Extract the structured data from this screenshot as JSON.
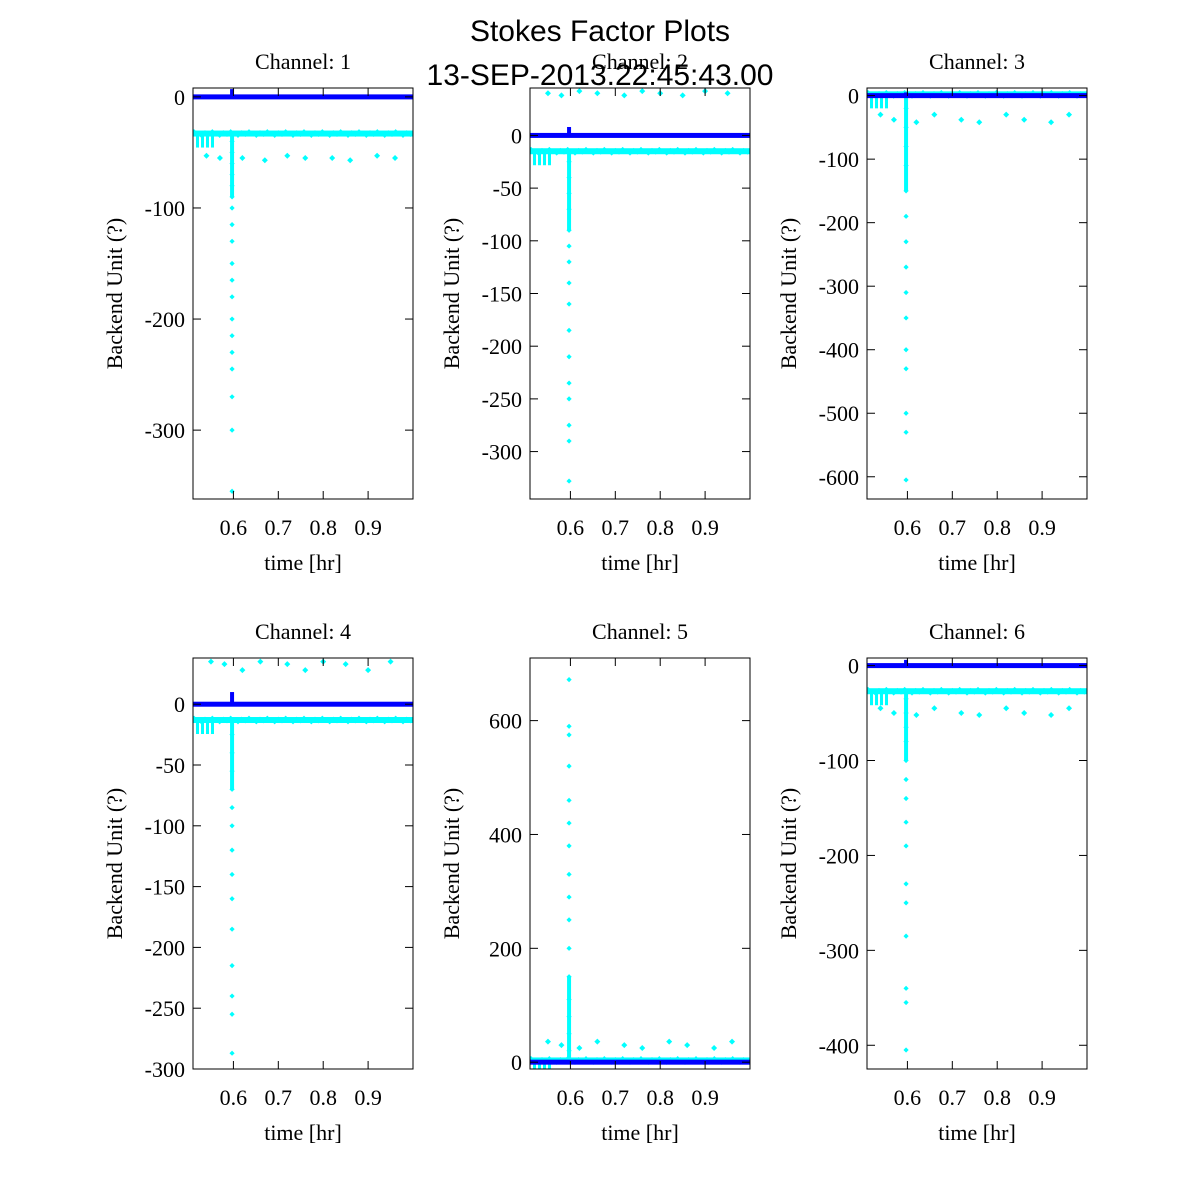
{
  "figure": {
    "title": "Stokes Factor Plots",
    "subtitle": "13-SEP-2013.22:45:43.00"
  },
  "colors": {
    "background": "#ffffff",
    "axes": "#000000",
    "primary": "#0000ff",
    "secondary": "#00ffff"
  },
  "chart_data": [
    {
      "type": "scatter",
      "title": "Channel: 1",
      "xlabel": "time [hr]",
      "ylabel": "Backend Unit (?)",
      "xlim": [
        0.51,
        1.0
      ],
      "ylim": [
        -362,
        8
      ],
      "xticks": [
        0.6,
        0.7,
        0.8,
        0.9
      ],
      "xtick_labels": [
        "0.6",
        "0.7",
        "0.8",
        "0.9"
      ],
      "yticks": [
        0,
        -100,
        -200,
        -300
      ],
      "ytick_labels": [
        "0",
        "-100",
        "-200",
        "-300"
      ],
      "series": [
        {
          "name": "blue",
          "color": "#0000ff",
          "baseline": 0,
          "spike": 7,
          "spike_x": 0.597
        },
        {
          "name": "cyan",
          "color": "#00ffff",
          "baseline": -33,
          "spike_x": 0.597,
          "spike_values": [
            -40,
            -50,
            -60,
            -70,
            -80,
            -90,
            -100,
            -115,
            -130,
            -150,
            -165,
            -180,
            -200,
            -215,
            -230,
            -245,
            -270,
            -300,
            -355
          ],
          "outlier_x": [
            0.54,
            0.57,
            0.62,
            0.67,
            0.72,
            0.76,
            0.82,
            0.86,
            0.92,
            0.96
          ],
          "outlier_values": [
            -53,
            -55,
            -55,
            -57
          ]
        }
      ]
    },
    {
      "type": "scatter",
      "title": "Channel: 2",
      "xlabel": "time [hr]",
      "ylabel": "Backend Unit (?)",
      "xlim": [
        0.51,
        1.0
      ],
      "ylim": [
        -345,
        45
      ],
      "xticks": [
        0.6,
        0.7,
        0.8,
        0.9
      ],
      "xtick_labels": [
        "0.6",
        "0.7",
        "0.8",
        "0.9"
      ],
      "yticks": [
        0,
        -50,
        -100,
        -150,
        -200,
        -250,
        -300
      ],
      "ytick_labels": [
        "0",
        "-50",
        "-100",
        "-150",
        "-200",
        "-250",
        "-300"
      ],
      "series": [
        {
          "name": "blue",
          "color": "#0000ff",
          "baseline": 0,
          "spike": 8,
          "spike_x": 0.597
        },
        {
          "name": "cyan",
          "color": "#00ffff",
          "baseline": -15,
          "spike_x": 0.597,
          "spike_values": [
            -25,
            -40,
            -55,
            -70,
            -90,
            -105,
            -120,
            -140,
            -160,
            -185,
            -210,
            -235,
            -250,
            -275,
            -290,
            -328
          ],
          "outlier_x": [
            0.55,
            0.58,
            0.62,
            0.66,
            0.72,
            0.76,
            0.8,
            0.85,
            0.9,
            0.95
          ],
          "outlier_values": [
            40,
            38,
            42
          ]
        }
      ]
    },
    {
      "type": "scatter",
      "title": "Channel: 3",
      "xlabel": "time [hr]",
      "ylabel": "Backend Unit (?)",
      "xlim": [
        0.51,
        1.0
      ],
      "ylim": [
        -635,
        12
      ],
      "xticks": [
        0.6,
        0.7,
        0.8,
        0.9
      ],
      "xtick_labels": [
        "0.6",
        "0.7",
        "0.8",
        "0.9"
      ],
      "yticks": [
        0,
        -100,
        -200,
        -300,
        -400,
        -500,
        -600
      ],
      "ytick_labels": [
        "0",
        "-100",
        "-200",
        "-300",
        "-400",
        "-500",
        "-600"
      ],
      "series": [
        {
          "name": "blue",
          "color": "#0000ff",
          "baseline": 0,
          "spike": 5,
          "spike_x": 0.597
        },
        {
          "name": "cyan",
          "color": "#00ffff",
          "baseline": 2,
          "spike_x": 0.597,
          "spike_values": [
            -20,
            -50,
            -80,
            -110,
            -150,
            -190,
            -230,
            -270,
            -310,
            -350,
            -400,
            -430,
            -500,
            -530,
            -605
          ],
          "outlier_x": [
            0.54,
            0.57,
            0.62,
            0.66,
            0.72,
            0.76,
            0.82,
            0.86,
            0.92,
            0.96
          ],
          "outlier_values": [
            -30,
            -38,
            -42
          ]
        }
      ]
    },
    {
      "type": "scatter",
      "title": "Channel: 4",
      "xlabel": "time [hr]",
      "ylabel": "Backend Unit (?)",
      "xlim": [
        0.51,
        1.0
      ],
      "ylim": [
        -300,
        38
      ],
      "xticks": [
        0.6,
        0.7,
        0.8,
        0.9
      ],
      "xtick_labels": [
        "0.6",
        "0.7",
        "0.8",
        "0.9"
      ],
      "yticks": [
        0,
        -50,
        -100,
        -150,
        -200,
        -250,
        -300
      ],
      "ytick_labels": [
        "0",
        "-50",
        "-100",
        "-150",
        "-200",
        "-250",
        "-300"
      ],
      "series": [
        {
          "name": "blue",
          "color": "#0000ff",
          "baseline": 0,
          "spike": 10,
          "spike_x": 0.597
        },
        {
          "name": "cyan",
          "color": "#00ffff",
          "baseline": -13,
          "spike_x": 0.597,
          "spike_values": [
            -25,
            -40,
            -55,
            -70,
            -85,
            -100,
            -120,
            -140,
            -160,
            -185,
            -215,
            -240,
            -255,
            -287
          ],
          "outlier_x": [
            0.55,
            0.58,
            0.62,
            0.66,
            0.72,
            0.76,
            0.8,
            0.85,
            0.9,
            0.95
          ],
          "outlier_values": [
            35,
            33,
            28
          ]
        }
      ]
    },
    {
      "type": "scatter",
      "title": "Channel: 5",
      "xlabel": "time [hr]",
      "ylabel": "Backend Unit (?)",
      "xlim": [
        0.51,
        1.0
      ],
      "ylim": [
        -12,
        710
      ],
      "xticks": [
        0.6,
        0.7,
        0.8,
        0.9
      ],
      "xtick_labels": [
        "0.6",
        "0.7",
        "0.8",
        "0.9"
      ],
      "yticks": [
        0,
        200,
        400,
        600
      ],
      "ytick_labels": [
        "0",
        "200",
        "400",
        "600"
      ],
      "series": [
        {
          "name": "blue",
          "color": "#0000ff",
          "baseline": 0,
          "spike": 0,
          "spike_x": 0.597
        },
        {
          "name": "cyan",
          "color": "#00ffff",
          "baseline": 3,
          "spike_x": 0.597,
          "spike_values": [
            20,
            50,
            80,
            110,
            150,
            200,
            250,
            290,
            330,
            380,
            420,
            460,
            520,
            575,
            590,
            672
          ],
          "outlier_x": [
            0.55,
            0.58,
            0.62,
            0.66,
            0.72,
            0.76,
            0.82,
            0.86,
            0.92,
            0.96
          ],
          "outlier_values": [
            36,
            30,
            25
          ]
        }
      ]
    },
    {
      "type": "scatter",
      "title": "Channel: 6",
      "xlabel": "time [hr]",
      "ylabel": "Backend Unit (?)",
      "xlim": [
        0.51,
        1.0
      ],
      "ylim": [
        -425,
        8
      ],
      "xticks": [
        0.6,
        0.7,
        0.8,
        0.9
      ],
      "xtick_labels": [
        "0.6",
        "0.7",
        "0.8",
        "0.9"
      ],
      "yticks": [
        0,
        -100,
        -200,
        -300,
        -400
      ],
      "ytick_labels": [
        "0",
        "-100",
        "-200",
        "-300",
        "-400"
      ],
      "series": [
        {
          "name": "blue",
          "color": "#0000ff",
          "baseline": 0,
          "spike": 6,
          "spike_x": 0.597
        },
        {
          "name": "cyan",
          "color": "#00ffff",
          "baseline": -27,
          "spike_x": 0.597,
          "spike_values": [
            -35,
            -50,
            -65,
            -80,
            -100,
            -120,
            -140,
            -165,
            -190,
            -230,
            -250,
            -285,
            -340,
            -355,
            -405
          ],
          "outlier_x": [
            0.54,
            0.57,
            0.62,
            0.66,
            0.72,
            0.76,
            0.82,
            0.86,
            0.92,
            0.96
          ],
          "outlier_values": [
            -45,
            -50,
            -52
          ]
        }
      ]
    }
  ]
}
